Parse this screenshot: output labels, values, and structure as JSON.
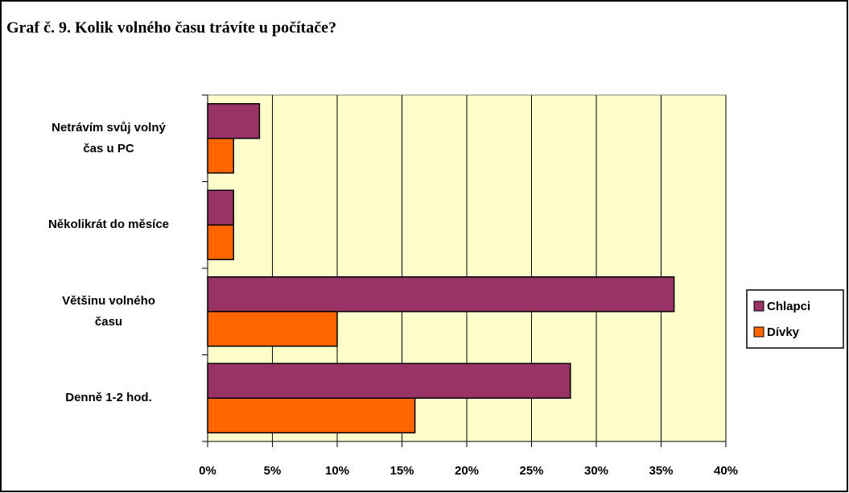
{
  "chart_data": {
    "type": "bar",
    "orientation": "horizontal",
    "title": "Graf č. 9. Kolik volného času trávíte u počítače?",
    "categories": [
      "Netrávím svůj volný\nčas u PC",
      "Několikrát do měsíce",
      "Většinu volného\nčasu",
      "Denně 1-2 hod."
    ],
    "series": [
      {
        "name": "Chlapci",
        "color": "#993366",
        "values": [
          4,
          2,
          36,
          28
        ]
      },
      {
        "name": "Dívky",
        "color": "#FF6600",
        "values": [
          2,
          2,
          10,
          16
        ]
      }
    ],
    "xlim": [
      0,
      40
    ],
    "xticks": [
      {
        "value": 0,
        "label": "0%"
      },
      {
        "value": 5,
        "label": "5%"
      },
      {
        "value": 10,
        "label": "10%"
      },
      {
        "value": 15,
        "label": "15%"
      },
      {
        "value": 20,
        "label": "20%"
      },
      {
        "value": 25,
        "label": "25%"
      },
      {
        "value": 30,
        "label": "30%"
      },
      {
        "value": 35,
        "label": "35%"
      },
      {
        "value": 40,
        "label": "40%"
      }
    ],
    "grid": true,
    "legend": "right",
    "plot_background": "#FFFFCC"
  }
}
